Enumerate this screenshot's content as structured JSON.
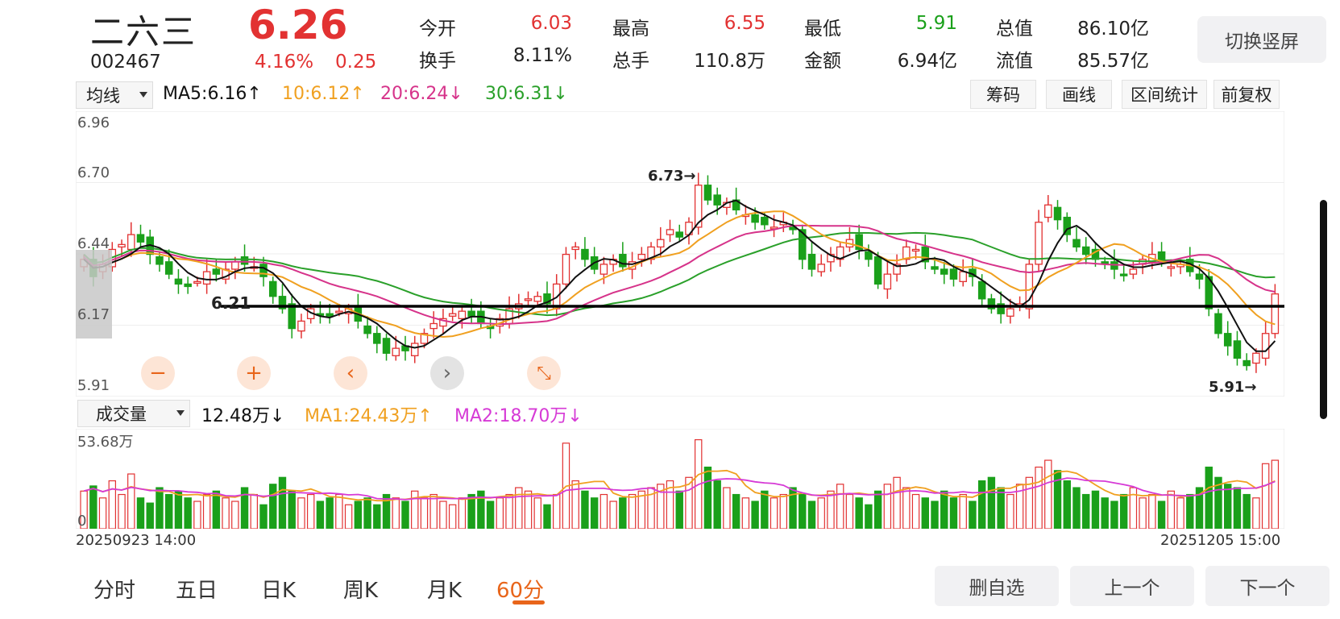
{
  "header": {
    "name": "二六三",
    "code": "002467",
    "price": "6.26",
    "change_pct": "4.16%",
    "change": "0.25",
    "stats": [
      {
        "label": "今开",
        "value": "6.03",
        "color": "#e23232"
      },
      {
        "label": "最高",
        "value": "6.55",
        "color": "#e23232"
      },
      {
        "label": "最低",
        "value": "5.91",
        "color": "#1aa01a"
      },
      {
        "label": "总值",
        "value": "86.10亿",
        "color": "#222222"
      },
      {
        "label": "换手",
        "value": "8.11%",
        "color": "#222222"
      },
      {
        "label": "总手",
        "value": "110.8万",
        "color": "#222222"
      },
      {
        "label": "金额",
        "value": "6.94亿",
        "color": "#222222"
      },
      {
        "label": "流值",
        "value": "85.57亿",
        "color": "#222222"
      }
    ],
    "portrait_button": "切换竖屏"
  },
  "ma_bar": {
    "selector": "均线",
    "ma5": "MA5:6.16↑",
    "ma10": "10:6.12↑",
    "ma20": "20:6.24↓",
    "ma30": "30:6.31↓",
    "colors": {
      "ma5": "#111111",
      "ma10": "#f0a020",
      "ma20": "#d6338a",
      "ma30": "#2aa02a"
    }
  },
  "tools": [
    "筹码",
    "画线",
    "区间统计",
    "前复权"
  ],
  "price_axis": [
    "6.96",
    "6.70",
    "6.44",
    "6.17",
    "5.91"
  ],
  "annotations": {
    "high": "6.73→",
    "low": "5.91→",
    "line": "6.21"
  },
  "controls": [
    "−",
    "+",
    "‹",
    "›",
    "⤡"
  ],
  "volume_bar": {
    "selector": "成交量",
    "vol": "12.48万↓",
    "ma1": "MA1:24.43万↑",
    "ma2": "MA2:18.70万↓",
    "max_label": "53.68万",
    "zero_label": "0"
  },
  "dates": {
    "start": "20250923 14:00",
    "end": "20251205 15:00"
  },
  "tabs": [
    "分时",
    "五日",
    "日K",
    "周K",
    "月K",
    "60分"
  ],
  "active_tab": "60分",
  "bottom_buttons": [
    "删自选",
    "上一个",
    "下一个"
  ],
  "chart_data": {
    "type": "candlestick",
    "y_range": [
      5.91,
      6.96
    ],
    "horizontal_line": 6.21,
    "closes": [
      6.4,
      6.33,
      6.38,
      6.44,
      6.46,
      6.5,
      6.47,
      6.42,
      6.38,
      6.34,
      6.3,
      6.29,
      6.31,
      6.35,
      6.34,
      6.36,
      6.39,
      6.38,
      6.37,
      6.33,
      6.25,
      6.2,
      6.12,
      6.15,
      6.2,
      6.18,
      6.17,
      6.19,
      6.2,
      6.15,
      6.1,
      6.06,
      6.02,
      6.04,
      6.03,
      6.06,
      6.1,
      6.14,
      6.16,
      6.18,
      6.19,
      6.17,
      6.14,
      6.12,
      6.16,
      6.2,
      6.22,
      6.24,
      6.25,
      6.22,
      6.3,
      6.42,
      6.45,
      6.4,
      6.36,
      6.38,
      6.4,
      6.37,
      6.39,
      6.42,
      6.45,
      6.48,
      6.52,
      6.49,
      6.55,
      6.7,
      6.64,
      6.62,
      6.63,
      6.6,
      6.58,
      6.55,
      6.54,
      6.53,
      6.55,
      6.52,
      6.4,
      6.36,
      6.38,
      6.42,
      6.45,
      6.48,
      6.44,
      6.4,
      6.3,
      6.34,
      6.38,
      6.45,
      6.44,
      6.39,
      6.36,
      6.34,
      6.32,
      6.35,
      6.33,
      6.24,
      6.2,
      6.18,
      6.2,
      6.22,
      6.38,
      6.55,
      6.62,
      6.56,
      6.5,
      6.45,
      6.42,
      6.4,
      6.38,
      6.36,
      6.34,
      6.36,
      6.4,
      6.42,
      6.39,
      6.37,
      6.38,
      6.35,
      6.32,
      6.2,
      6.1,
      6.05,
      6.0,
      5.97,
      6.02,
      6.1,
      6.26
    ],
    "volumes_k": [
      22,
      25,
      18,
      28,
      20,
      32,
      18,
      15,
      24,
      20,
      22,
      18,
      16,
      20,
      22,
      18,
      16,
      24,
      20,
      14,
      26,
      30,
      22,
      18,
      20,
      16,
      18,
      20,
      14,
      16,
      18,
      14,
      20,
      18,
      16,
      22,
      18,
      20,
      16,
      14,
      18,
      20,
      22,
      16,
      18,
      20,
      24,
      22,
      18,
      14,
      20,
      50,
      28,
      22,
      18,
      20,
      16,
      18,
      20,
      22,
      24,
      26,
      28,
      22,
      30,
      52,
      36,
      28,
      24,
      20,
      18,
      16,
      22,
      18,
      20,
      24,
      20,
      16,
      18,
      22,
      26,
      20,
      18,
      14,
      22,
      26,
      30,
      24,
      20,
      18,
      16,
      22,
      18,
      20,
      16,
      28,
      30,
      24,
      20,
      26,
      30,
      36,
      40,
      34,
      28,
      24,
      20,
      22,
      18,
      16,
      20,
      24,
      18,
      20,
      16,
      22,
      18,
      20,
      24,
      36,
      30,
      26,
      24,
      20,
      18,
      38,
      40
    ]
  }
}
